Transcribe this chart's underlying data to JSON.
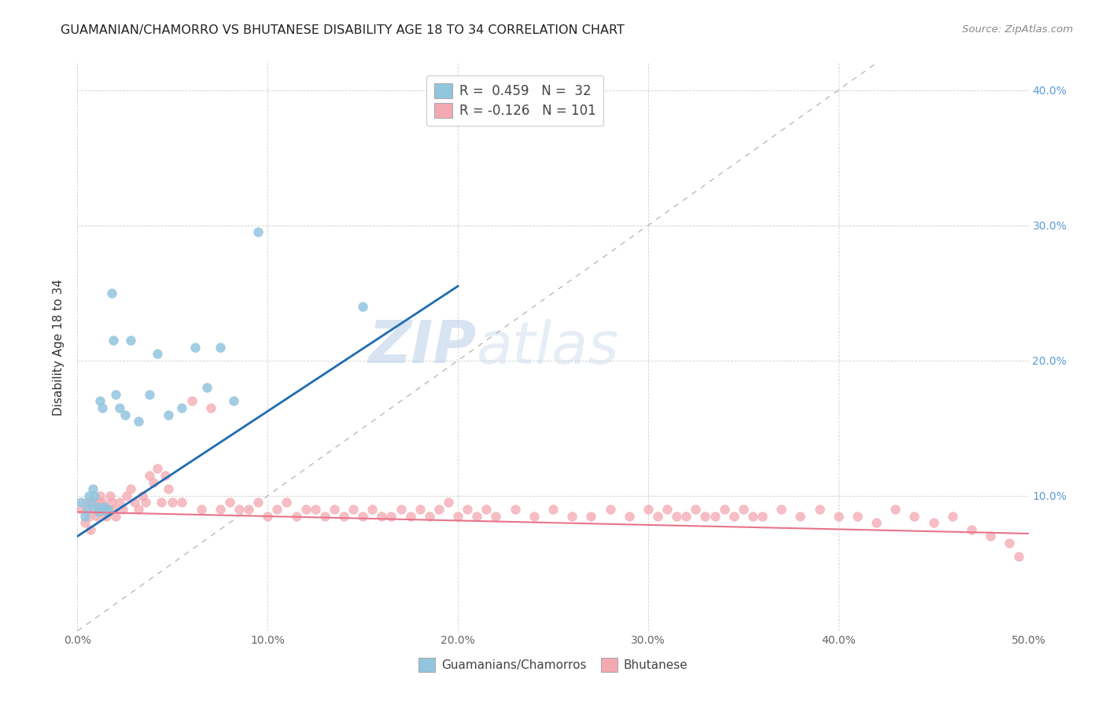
{
  "title": "GUAMANIAN/CHAMORRO VS BHUTANESE DISABILITY AGE 18 TO 34 CORRELATION CHART",
  "source": "Source: ZipAtlas.com",
  "ylabel": "Disability Age 18 to 34",
  "xlim": [
    0.0,
    0.5
  ],
  "ylim": [
    0.0,
    0.42
  ],
  "guamanian_color": "#92c5de",
  "bhutanese_color": "#f4a9b0",
  "guamanian_line_color": "#1f6cb0",
  "bhutanese_line_color": "#e8748a",
  "diagonal_line_color": "#bbbbbb",
  "R_guamanian": 0.459,
  "N_guamanian": 32,
  "R_bhutanese": -0.126,
  "N_bhutanese": 101,
  "legend_label_guamanian": "Guamanians/Chamorros",
  "legend_label_bhutanese": "Bhutanese",
  "watermark_zip": "ZIP",
  "watermark_atlas": "atlas",
  "guamanian_x": [
    0.002,
    0.004,
    0.005,
    0.006,
    0.007,
    0.008,
    0.009,
    0.01,
    0.011,
    0.012,
    0.013,
    0.014,
    0.015,
    0.016,
    0.018,
    0.019,
    0.02,
    0.022,
    0.025,
    0.028,
    0.032,
    0.038,
    0.042,
    0.048,
    0.055,
    0.062,
    0.068,
    0.075,
    0.082,
    0.095,
    0.15,
    0.19
  ],
  "guamanian_y": [
    0.095,
    0.085,
    0.09,
    0.1,
    0.095,
    0.105,
    0.1,
    0.092,
    0.088,
    0.17,
    0.165,
    0.092,
    0.088,
    0.09,
    0.25,
    0.215,
    0.175,
    0.165,
    0.16,
    0.215,
    0.155,
    0.175,
    0.205,
    0.16,
    0.165,
    0.21,
    0.18,
    0.21,
    0.17,
    0.295,
    0.24,
    0.38
  ],
  "bhutanese_x": [
    0.002,
    0.004,
    0.005,
    0.006,
    0.007,
    0.008,
    0.009,
    0.01,
    0.011,
    0.012,
    0.013,
    0.014,
    0.015,
    0.016,
    0.017,
    0.018,
    0.019,
    0.02,
    0.022,
    0.024,
    0.026,
    0.028,
    0.03,
    0.032,
    0.034,
    0.036,
    0.038,
    0.04,
    0.042,
    0.044,
    0.046,
    0.048,
    0.05,
    0.055,
    0.06,
    0.065,
    0.07,
    0.075,
    0.08,
    0.085,
    0.09,
    0.095,
    0.1,
    0.105,
    0.11,
    0.115,
    0.12,
    0.125,
    0.13,
    0.135,
    0.14,
    0.145,
    0.15,
    0.155,
    0.16,
    0.165,
    0.17,
    0.175,
    0.18,
    0.185,
    0.19,
    0.195,
    0.2,
    0.205,
    0.21,
    0.215,
    0.22,
    0.23,
    0.24,
    0.25,
    0.26,
    0.27,
    0.28,
    0.29,
    0.3,
    0.305,
    0.31,
    0.315,
    0.32,
    0.325,
    0.33,
    0.335,
    0.34,
    0.345,
    0.35,
    0.355,
    0.36,
    0.37,
    0.38,
    0.39,
    0.4,
    0.41,
    0.42,
    0.43,
    0.44,
    0.45,
    0.46,
    0.47,
    0.48,
    0.49,
    0.495
  ],
  "bhutanese_y": [
    0.09,
    0.08,
    0.095,
    0.085,
    0.075,
    0.09,
    0.095,
    0.085,
    0.095,
    0.1,
    0.095,
    0.09,
    0.085,
    0.09,
    0.1,
    0.095,
    0.09,
    0.085,
    0.095,
    0.09,
    0.1,
    0.105,
    0.095,
    0.09,
    0.1,
    0.095,
    0.115,
    0.11,
    0.12,
    0.095,
    0.115,
    0.105,
    0.095,
    0.095,
    0.17,
    0.09,
    0.165,
    0.09,
    0.095,
    0.09,
    0.09,
    0.095,
    0.085,
    0.09,
    0.095,
    0.085,
    0.09,
    0.09,
    0.085,
    0.09,
    0.085,
    0.09,
    0.085,
    0.09,
    0.085,
    0.085,
    0.09,
    0.085,
    0.09,
    0.085,
    0.09,
    0.095,
    0.085,
    0.09,
    0.085,
    0.09,
    0.085,
    0.09,
    0.085,
    0.09,
    0.085,
    0.085,
    0.09,
    0.085,
    0.09,
    0.085,
    0.09,
    0.085,
    0.085,
    0.09,
    0.085,
    0.085,
    0.09,
    0.085,
    0.09,
    0.085,
    0.085,
    0.09,
    0.085,
    0.09,
    0.085,
    0.085,
    0.08,
    0.09,
    0.085,
    0.08,
    0.085,
    0.075,
    0.07,
    0.065,
    0.055
  ]
}
